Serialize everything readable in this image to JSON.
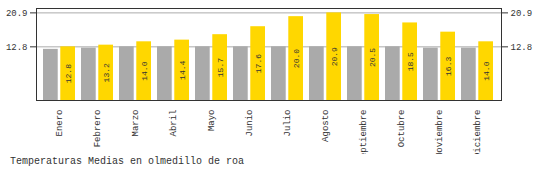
{
  "chart_data": {
    "type": "bar",
    "title": "Temperaturas Medias en olmedillo de roa",
    "categories": [
      "Enero",
      "Febrero",
      "Marzo",
      "Abril",
      "Mayo",
      "Junio",
      "Julio",
      "Agosto",
      "Septiembre",
      "Octubre",
      "Noviembre",
      "Diciembre"
    ],
    "series": [
      {
        "color": "#AAAAAA",
        "values": [
          12.2,
          12.5,
          12.8,
          12.8,
          12.8,
          12.8,
          12.8,
          12.8,
          12.8,
          12.8,
          12.5,
          12.5
        ]
      },
      {
        "color": "#FFD700",
        "values": [
          12.8,
          13.2,
          14.0,
          14.4,
          15.7,
          17.6,
          20.0,
          20.9,
          20.5,
          18.5,
          16.3,
          14.0
        ],
        "value_labels": [
          "12.8",
          "13.2",
          "14.0",
          "14.4",
          "15.7",
          "17.6",
          "20.0",
          "20.9",
          "20.5",
          "18.5",
          "16.3",
          "14.0"
        ]
      }
    ],
    "ylim": [
      0,
      21.945
    ],
    "yticks": [
      12.8,
      20.9
    ],
    "grid": true,
    "data_labels": true
  }
}
